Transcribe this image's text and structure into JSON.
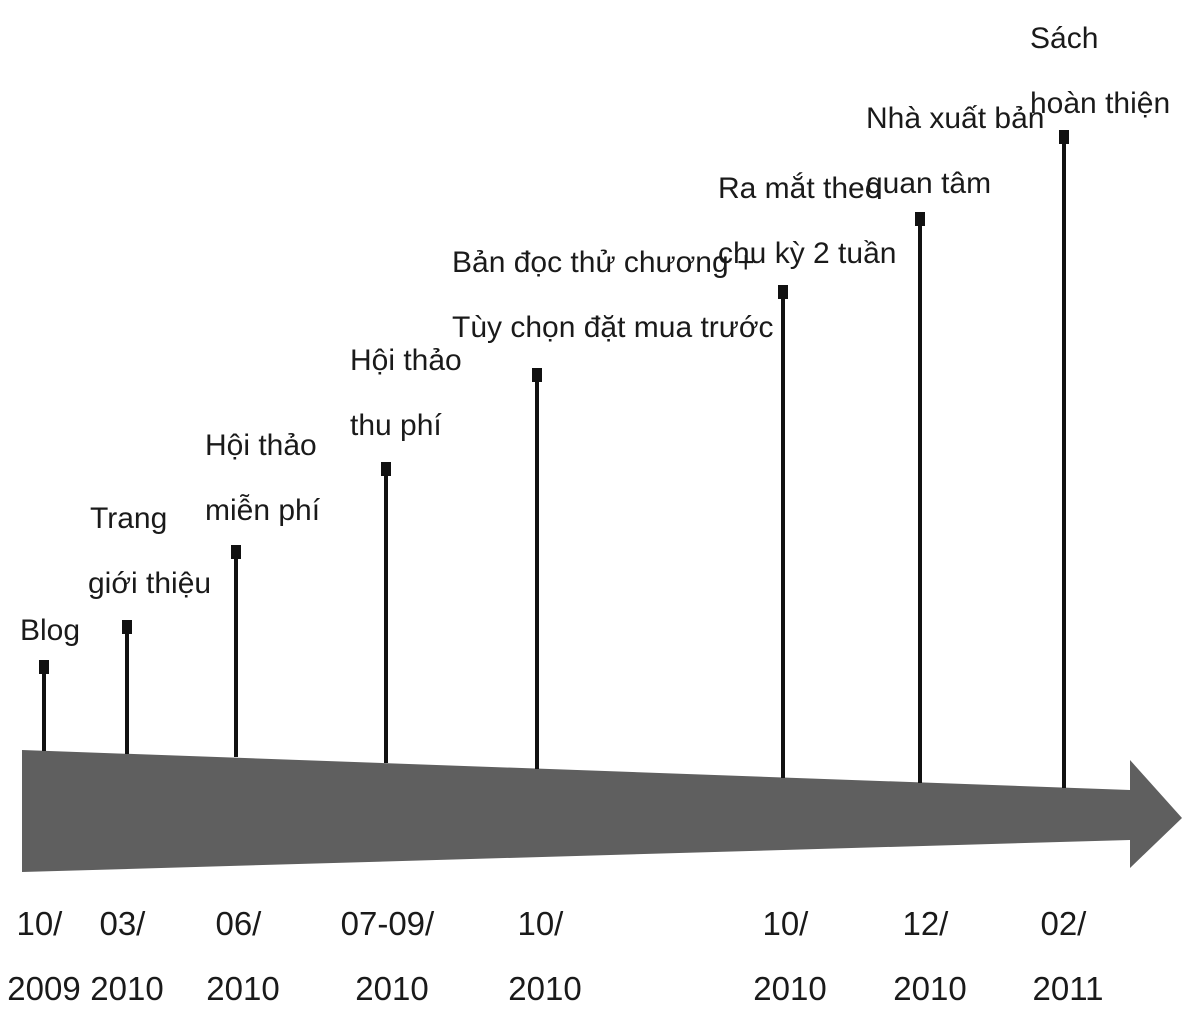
{
  "timeline": {
    "colors": {
      "arrow": "#5f5f5f",
      "stem": "#111111",
      "text": "#1a1a1a"
    },
    "events": [
      {
        "label_lines": [
          "Blog"
        ],
        "date_lines": [
          "10/",
          "2009"
        ]
      },
      {
        "label_lines": [
          "Trang",
          "giới thiệu"
        ],
        "date_lines": [
          "03/",
          "2010"
        ]
      },
      {
        "label_lines": [
          "Hội thảo",
          "miễn phí"
        ],
        "date_lines": [
          "06/",
          "2010"
        ]
      },
      {
        "label_lines": [
          "Hội thảo",
          "thu phí"
        ],
        "date_lines": [
          "07-09/",
          "2010"
        ]
      },
      {
        "label_lines": [
          "Bản đọc thử chương +",
          "Tùy chọn đặt mua trước"
        ],
        "date_lines": [
          "10/",
          "2010"
        ]
      },
      {
        "label_lines": [
          "Ra mắt theo",
          "chu kỳ 2 tuần"
        ],
        "date_lines": [
          "10/",
          "2010"
        ]
      },
      {
        "label_lines": [
          "Nhà xuất bản",
          "quan tâm"
        ],
        "date_lines": [
          "12/",
          "2010"
        ]
      },
      {
        "label_lines": [
          "Sách",
          "hoàn thiện"
        ],
        "date_lines": [
          "02/",
          "2011"
        ]
      }
    ]
  }
}
